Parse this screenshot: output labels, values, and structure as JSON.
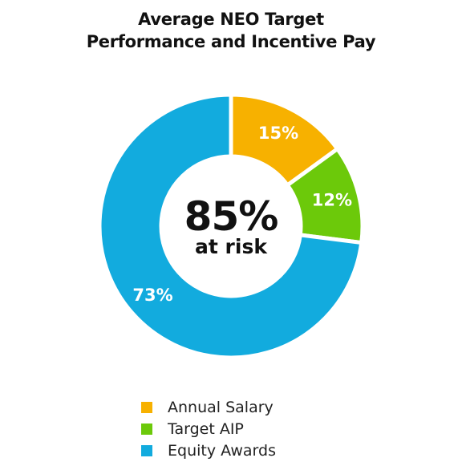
{
  "chart_data": {
    "type": "pie",
    "title": [
      "Average NEO Target",
      "Performance and Incentive Pay"
    ],
    "categories": [
      "Annual Salary",
      "Target AIP",
      "Equity Awards"
    ],
    "values": [
      15,
      12,
      73
    ],
    "value_labels": [
      "15%",
      "12%",
      "73%"
    ],
    "colors": [
      "#F7B100",
      "#6CC90A",
      "#12ABDE"
    ],
    "center_value": "85%",
    "center_caption": "at risk",
    "donut": true,
    "start_angle_deg": 0,
    "direction": "clockwise",
    "legend_placement": "bottom"
  }
}
